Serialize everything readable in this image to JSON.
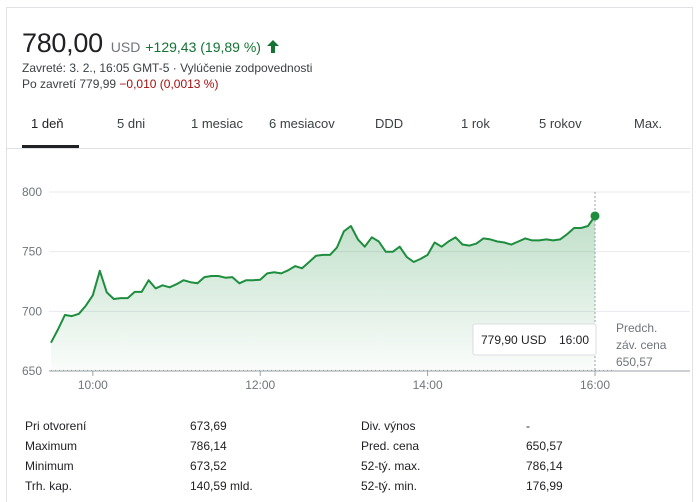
{
  "header": {
    "price": "780,00",
    "currency": "USD",
    "change": "+129,43 (19,89 %)",
    "closed_label": "Zavreté: 3. 2., 16:05 GMT-5 · Vylúčenie zodpovednosti",
    "after_hours_prefix": "Po zavretí 779,99 ",
    "after_hours_change": "−0,010 (0,0013 %)",
    "up_color": "#137333",
    "down_color": "#a50e0e",
    "arrow_icon": "arrow-up-icon"
  },
  "tabs": [
    {
      "label": "1 deň",
      "active": true
    },
    {
      "label": "5 dni",
      "active": false
    },
    {
      "label": "1 mesiac",
      "active": false
    },
    {
      "label": "6 mesiacov",
      "active": false
    },
    {
      "label": "DDD",
      "active": false
    },
    {
      "label": "1 rok",
      "active": false
    },
    {
      "label": "5 rokov",
      "active": false
    },
    {
      "label": "Max.",
      "active": false
    }
  ],
  "tooltip": {
    "price": "779,90 USD",
    "time": "16:00"
  },
  "prev_close": {
    "line1": "Predch.",
    "line2": "záv. cena",
    "value": "650,57"
  },
  "chart_data": {
    "type": "area",
    "line_color": "#1e8e3e",
    "y_ticks": [
      "800",
      "750",
      "700",
      "650"
    ],
    "ylim": [
      650,
      800
    ],
    "x_ticks": [
      "10:00",
      "12:00",
      "14:00",
      "16:00"
    ],
    "xlim": [
      "09:30",
      "16:00"
    ],
    "reference_value": 650.57,
    "grid": true,
    "series": [
      {
        "values": [
          [
            "09:30",
            673.7
          ],
          [
            "09:35",
            684.9
          ],
          [
            "09:40",
            696.9
          ],
          [
            "09:45",
            696.0
          ],
          [
            "09:50",
            697.9
          ],
          [
            "09:55",
            704.8
          ],
          [
            "10:00",
            713.4
          ],
          [
            "10:05",
            734.0
          ],
          [
            "10:10",
            715.9
          ],
          [
            "10:15",
            710.3
          ],
          [
            "10:20",
            711.1
          ],
          [
            "10:25",
            711.1
          ],
          [
            "10:30",
            716.3
          ],
          [
            "10:35",
            716.3
          ],
          [
            "10:40",
            726.1
          ],
          [
            "10:45",
            719.2
          ],
          [
            "10:50",
            721.8
          ],
          [
            "10:55",
            720.1
          ],
          [
            "11:00",
            722.7
          ],
          [
            "11:05",
            726.1
          ],
          [
            "11:10",
            724.4
          ],
          [
            "11:15",
            723.5
          ],
          [
            "11:20",
            728.7
          ],
          [
            "11:25",
            729.6
          ],
          [
            "11:30",
            729.6
          ],
          [
            "11:35",
            728.2
          ],
          [
            "11:40",
            728.7
          ],
          [
            "11:45",
            723.5
          ],
          [
            "11:50",
            726.1
          ],
          [
            "11:55",
            726.1
          ],
          [
            "12:00",
            726.5
          ],
          [
            "12:05",
            731.8
          ],
          [
            "12:10",
            732.7
          ],
          [
            "12:15",
            731.8
          ],
          [
            "12:20",
            734.4
          ],
          [
            "12:25",
            737.9
          ],
          [
            "12:30",
            736.1
          ],
          [
            "12:35",
            741.3
          ],
          [
            "12:40",
            746.5
          ],
          [
            "12:45",
            747.3
          ],
          [
            "12:50",
            747.3
          ],
          [
            "12:55",
            753.4
          ],
          [
            "13:00",
            767.1
          ],
          [
            "13:05",
            771.5
          ],
          [
            "13:10",
            760.3
          ],
          [
            "13:15",
            754.2
          ],
          [
            "13:20",
            762.0
          ],
          [
            "13:25",
            758.5
          ],
          [
            "13:30",
            749.9
          ],
          [
            "13:35",
            749.9
          ],
          [
            "13:40",
            754.2
          ],
          [
            "13:45",
            745.6
          ],
          [
            "13:50",
            741.3
          ],
          [
            "13:55",
            743.9
          ],
          [
            "14:00",
            747.3
          ],
          [
            "14:05",
            757.7
          ],
          [
            "14:10",
            754.2
          ],
          [
            "14:15",
            758.5
          ],
          [
            "14:20",
            762.0
          ],
          [
            "14:25",
            756.0
          ],
          [
            "14:30",
            755.1
          ],
          [
            "14:35",
            756.8
          ],
          [
            "14:40",
            761.1
          ],
          [
            "14:45",
            760.3
          ],
          [
            "14:50",
            758.5
          ],
          [
            "14:55",
            757.7
          ],
          [
            "15:00",
            755.9
          ],
          [
            "15:05",
            758.5
          ],
          [
            "15:10",
            761.1
          ],
          [
            "15:15",
            759.4
          ],
          [
            "15:20",
            759.4
          ],
          [
            "15:25",
            760.3
          ],
          [
            "15:30",
            759.4
          ],
          [
            "15:35",
            760.3
          ],
          [
            "15:40",
            764.6
          ],
          [
            "15:45",
            769.8
          ],
          [
            "15:50",
            769.8
          ],
          [
            "15:55",
            771.5
          ],
          [
            "16:00",
            779.9
          ]
        ]
      }
    ]
  },
  "stats": [
    {
      "label": "Pri otvorení",
      "value": "673,69"
    },
    {
      "label": "Maximum",
      "value": "786,14"
    },
    {
      "label": "Minimum",
      "value": "673,52"
    },
    {
      "label": "Trh. kap.",
      "value": "140,59 mld."
    },
    {
      "label": "Div. výnos",
      "value": "-"
    },
    {
      "label": "Pred. cena",
      "value": "650,57"
    },
    {
      "label": "52-tý. max.",
      "value": "786,14"
    },
    {
      "label": "52-tý. min.",
      "value": "176,99"
    }
  ]
}
